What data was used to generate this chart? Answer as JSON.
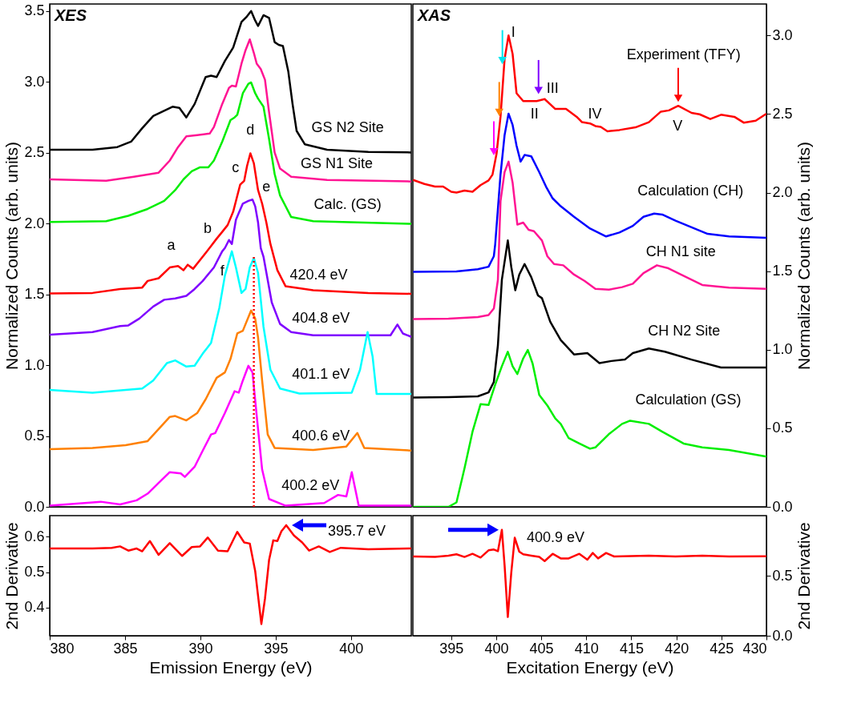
{
  "chart_data": [
    {
      "type": "line",
      "title": "XES",
      "ylabel": "Normalized Counts (arb. units)",
      "xlim": [
        380,
        404
      ],
      "ylim": [
        0,
        3.55
      ],
      "xticks": [
        380,
        385,
        390,
        395,
        400
      ],
      "yticks": [
        {
          "value": 0,
          "label": "0.0"
        },
        0.5,
        {
          "value": 1,
          "label": "1.0"
        },
        1.5,
        {
          "value": 2,
          "label": "2.0"
        },
        2.5,
        {
          "value": 3,
          "label": "3.0"
        },
        3.5
      ],
      "tick_labels": "y",
      "grid": false,
      "line_style": "solid",
      "series": [
        {
          "color": "#000000",
          "x": [
            380.0,
            382.84,
            384.49,
            385.4,
            386.14,
            386.87,
            388.15,
            388.61,
            389.07,
            389.62,
            390.35,
            390.71,
            391.08,
            391.63,
            392.18,
            392.73,
            393.09,
            393.37,
            393.64,
            393.83,
            394.19,
            394.56,
            394.93,
            395.2,
            395.48,
            395.84,
            396.12,
            396.39,
            396.94,
            398.41,
            401.15,
            404.0
          ],
          "values": [
            2.521,
            2.521,
            2.54,
            2.578,
            2.673,
            2.759,
            2.825,
            2.816,
            2.749,
            2.844,
            3.034,
            3.044,
            3.034,
            3.148,
            3.243,
            3.424,
            3.462,
            3.5,
            3.433,
            3.395,
            3.471,
            3.452,
            3.281,
            3.262,
            3.253,
            3.072,
            2.844,
            2.654,
            2.559,
            2.521,
            2.506,
            2.502
          ]
        },
        {
          "color": "#ff1493",
          "x": [
            380.0,
            383.75,
            385.59,
            387.23,
            387.97,
            388.52,
            389.07,
            389.8,
            390.62,
            390.9,
            391.45,
            391.9,
            392.09,
            392.36,
            392.73,
            393.0,
            393.28,
            393.55,
            393.74,
            394.01,
            394.29,
            394.56,
            394.93,
            395.29,
            396.03,
            398.41,
            404.0
          ],
          "values": [
            2.312,
            2.302,
            2.331,
            2.359,
            2.445,
            2.54,
            2.616,
            2.625,
            2.635,
            2.682,
            2.844,
            2.958,
            2.973,
            2.968,
            3.129,
            3.224,
            3.3,
            3.205,
            3.129,
            3.091,
            3.015,
            2.787,
            2.502,
            2.388,
            2.331,
            2.308,
            2.297
          ]
        },
        {
          "color": "#00ee00",
          "x": [
            380.0,
            383.75,
            385.22,
            386.5,
            387.6,
            388.33,
            388.88,
            389.43,
            389.98,
            390.53,
            390.9,
            391.45,
            392.0,
            392.27,
            392.45,
            392.82,
            393.19,
            393.37,
            393.64,
            393.83,
            394.19,
            394.56,
            394.93,
            395.29,
            396.03,
            397.49,
            404.0
          ],
          "values": [
            2.011,
            2.017,
            2.055,
            2.103,
            2.16,
            2.236,
            2.312,
            2.369,
            2.397,
            2.397,
            2.445,
            2.578,
            2.73,
            2.749,
            2.768,
            2.92,
            2.987,
            2.996,
            2.92,
            2.882,
            2.825,
            2.597,
            2.35,
            2.198,
            2.046,
            2.017,
            1.998
          ]
        },
        {
          "color": "#ff0000",
          "x": [
            380.0,
            382.84,
            384.67,
            386.14,
            386.5,
            387.23,
            387.97,
            388.52,
            388.88,
            389.16,
            389.52,
            390.16,
            390.71,
            391.08,
            391.45,
            391.81,
            392.18,
            392.64,
            392.91,
            393.1,
            393.32,
            393.55,
            393.83,
            394.1,
            394.38,
            394.65,
            395.11,
            395.66,
            397.49,
            401.15,
            404.0
          ],
          "values": [
            1.506,
            1.51,
            1.538,
            1.548,
            1.595,
            1.614,
            1.69,
            1.7,
            1.671,
            1.709,
            1.681,
            1.766,
            1.842,
            1.893,
            1.941,
            1.989,
            2.084,
            2.274,
            2.302,
            2.407,
            2.496,
            2.426,
            2.236,
            2.141,
            2.008,
            1.856,
            1.671,
            1.557,
            1.529,
            1.51,
            1.504
          ]
        },
        {
          "color": "#7f00ff",
          "x": [
            380.0,
            382.84,
            384.67,
            385.22,
            385.95,
            386.87,
            387.6,
            388.33,
            389.07,
            389.62,
            390.16,
            390.9,
            391.45,
            391.63,
            391.9,
            392.09,
            392.36,
            392.55,
            392.82,
            393.19,
            393.46,
            393.64,
            393.83,
            394.01,
            394.19,
            394.74,
            395.29,
            396.03,
            397.49,
            402.62,
            403.08,
            403.44,
            404.0
          ],
          "values": [
            1.215,
            1.234,
            1.276,
            1.281,
            1.329,
            1.414,
            1.462,
            1.471,
            1.49,
            1.538,
            1.595,
            1.69,
            1.804,
            1.827,
            1.884,
            1.856,
            2.027,
            2.074,
            2.141,
            2.16,
            2.169,
            2.122,
            2.008,
            1.827,
            1.766,
            1.443,
            1.291,
            1.234,
            1.211,
            1.211,
            1.287,
            1.224,
            1.2
          ]
        },
        {
          "color": "#00ffff",
          "x": [
            380.0,
            382.84,
            386.14,
            386.87,
            387.78,
            388.33,
            389.07,
            389.62,
            390.16,
            390.71,
            391.26,
            391.63,
            392.09,
            392.36,
            392.73,
            393.0,
            393.28,
            393.55,
            393.83,
            394.19,
            394.65,
            395.29,
            396.58,
            400.05,
            400.6,
            401.1,
            401.43,
            401.7,
            404.0
          ],
          "values": [
            0.825,
            0.806,
            0.835,
            0.892,
            1.015,
            1.034,
            0.99,
            0.996,
            1.082,
            1.158,
            1.405,
            1.633,
            1.804,
            1.69,
            1.51,
            1.538,
            1.69,
            1.757,
            1.652,
            1.272,
            0.968,
            0.835,
            0.8,
            0.806,
            0.968,
            1.234,
            1.063,
            0.797,
            0.797
          ]
        },
        {
          "color": "#ff8000",
          "x": [
            380.0,
            382.84,
            385.04,
            386.5,
            387.23,
            387.97,
            388.33,
            389.07,
            389.8,
            390.35,
            391.08,
            391.63,
            392.0,
            392.45,
            392.82,
            393.37,
            393.64,
            393.83,
            394.1,
            394.47,
            394.93,
            397.49,
            399.69,
            400.42,
            400.88,
            404.0
          ],
          "values": [
            0.407,
            0.416,
            0.435,
            0.464,
            0.549,
            0.635,
            0.641,
            0.61,
            0.663,
            0.759,
            0.911,
            0.949,
            1.044,
            1.224,
            1.243,
            1.386,
            1.329,
            1.196,
            0.892,
            0.511,
            0.416,
            0.401,
            0.426,
            0.521,
            0.416,
            0.397
          ]
        },
        {
          "color": "#ff00ff",
          "x": [
            380.0,
            383.39,
            384.67,
            385.77,
            386.5,
            387.23,
            387.97,
            388.7,
            388.97,
            389.62,
            390.16,
            390.71,
            390.99,
            391.63,
            392.27,
            392.55,
            392.82,
            393.19,
            393.46,
            393.74,
            394.1,
            394.56,
            395.66,
            398.22,
            399.14,
            399.69,
            400.05,
            400.51,
            404.0
          ],
          "values": [
            0.008,
            0.036,
            0.017,
            0.046,
            0.093,
            0.169,
            0.245,
            0.236,
            0.211,
            0.283,
            0.397,
            0.511,
            0.521,
            0.663,
            0.816,
            0.806,
            0.892,
            0.996,
            0.949,
            0.644,
            0.264,
            0.055,
            0.008,
            0.027,
            0.084,
            0.074,
            0.245,
            0.008,
            0.008
          ]
        }
      ],
      "ref_lines": [
        {
          "axis": "x",
          "value": 393.55,
          "color": "#ff0000",
          "line_style": "dotted"
        }
      ],
      "annotations": [
        "GS N2 Site",
        "GS N1 Site",
        "Calc. (GS)",
        "d",
        "c",
        "e",
        "b",
        "a",
        "f",
        "420.4 eV",
        "404.8 eV",
        "401.1 eV",
        "400.6 eV",
        "400.2 eV"
      ]
    },
    {
      "type": "line",
      "title": "XAS",
      "ylabel": "Normalized Counts (arb. units)",
      "xlim": [
        390.75,
        430
      ],
      "ylim": [
        0,
        3.2
      ],
      "xticks": [
        395,
        400,
        405,
        410,
        415,
        420,
        425,
        430
      ],
      "yticks": [
        {
          "value": 0,
          "label": "0.0"
        },
        0.5,
        {
          "value": 1,
          "label": "1.0"
        },
        1.5,
        {
          "value": 2,
          "label": "2.0"
        },
        2.5,
        {
          "value": 3,
          "label": "3.0"
        }
      ],
      "tick_labels": "y",
      "grid": false,
      "line_style": "solid",
      "series": [
        {
          "color": "#ff0000",
          "x": [
            390.78,
            392.03,
            393.21,
            394.11,
            395.0,
            395.59,
            396.48,
            397.37,
            398.26,
            399.15,
            399.59,
            400.04,
            400.48,
            400.93,
            401.37,
            401.82,
            402.26,
            403.0,
            404.49,
            405.38,
            406.56,
            407.75,
            408.94,
            409.53,
            410.42,
            411.01,
            411.61,
            412.35,
            413.68,
            415.46,
            416.95,
            418.28,
            419.17,
            420.21,
            421.69,
            422.58,
            423.77,
            424.96,
            426.44,
            427.48,
            428.81,
            430.0
          ],
          "values": [
            2.08,
            2.055,
            2.038,
            2.038,
            2.005,
            2.0,
            2.013,
            2.005,
            2.047,
            2.077,
            2.114,
            2.247,
            2.482,
            2.849,
            3.0,
            2.883,
            2.632,
            2.582,
            2.582,
            2.595,
            2.532,
            2.532,
            2.482,
            2.448,
            2.44,
            2.423,
            2.418,
            2.39,
            2.398,
            2.415,
            2.448,
            2.515,
            2.523,
            2.552,
            2.507,
            2.498,
            2.468,
            2.495,
            2.482,
            2.445,
            2.457,
            2.502
          ]
        },
        {
          "color": "#0000ff",
          "x": [
            390.78,
            395.59,
            397.96,
            399.15,
            399.74,
            399.89,
            400.48,
            400.93,
            401.37,
            401.82,
            402.26,
            402.71,
            403.15,
            403.89,
            404.78,
            405.53,
            406.27,
            407.16,
            408.64,
            410.42,
            412.2,
            413.68,
            415.17,
            416.35,
            417.54,
            418.43,
            419.91,
            421.69,
            423.47,
            425.85,
            430.0
          ],
          "values": [
            1.495,
            1.498,
            1.512,
            1.528,
            1.595,
            1.671,
            2.114,
            2.365,
            2.502,
            2.431,
            2.298,
            2.197,
            2.239,
            2.231,
            2.13,
            2.038,
            1.963,
            1.913,
            1.846,
            1.771,
            1.721,
            1.746,
            1.788,
            1.846,
            1.866,
            1.86,
            1.821,
            1.779,
            1.737,
            1.721,
            1.712
          ]
        },
        {
          "color": "#ff1493",
          "x": [
            390.78,
            394.7,
            397.96,
            399.15,
            399.74,
            400.19,
            400.48,
            400.93,
            401.37,
            401.82,
            402.35,
            403.0,
            403.6,
            404.19,
            405.08,
            405.68,
            406.42,
            407.45,
            408.64,
            409.83,
            411.01,
            412.5,
            413.98,
            415.17,
            416.35,
            417.84,
            419.02,
            420.51,
            422.88,
            425.85,
            430.0
          ],
          "values": [
            1.195,
            1.198,
            1.208,
            1.22,
            1.262,
            1.445,
            1.946,
            2.13,
            2.197,
            2.064,
            1.796,
            1.809,
            1.763,
            1.754,
            1.695,
            1.595,
            1.545,
            1.537,
            1.478,
            1.437,
            1.387,
            1.382,
            1.398,
            1.42,
            1.487,
            1.537,
            1.52,
            1.478,
            1.412,
            1.395,
            1.387
          ]
        },
        {
          "color": "#000000",
          "x": [
            390.78,
            394.7,
            397.96,
            399.15,
            399.74,
            400.19,
            400.63,
            401.29,
            401.67,
            402.12,
            402.56,
            403.15,
            403.89,
            404.64,
            405.08,
            406.0,
            407.16,
            408.64,
            410.12,
            411.46,
            412.79,
            414.28,
            415.17,
            416.95,
            418.73,
            421.69,
            424.96,
            430.0
          ],
          "values": [
            0.695,
            0.698,
            0.703,
            0.728,
            0.795,
            1.028,
            1.445,
            1.695,
            1.528,
            1.378,
            1.478,
            1.545,
            1.462,
            1.345,
            1.328,
            1.178,
            1.062,
            0.97,
            0.978,
            0.915,
            0.928,
            0.937,
            0.978,
            1.008,
            0.987,
            0.937,
            0.887,
            0.887
          ]
        },
        {
          "color": "#00ee00",
          "x": [
            390.78,
            394.7,
            395.59,
            396.48,
            397.37,
            398.26,
            399.15,
            399.89,
            400.63,
            401.29,
            401.82,
            402.35,
            403.0,
            403.51,
            404.04,
            404.78,
            405.68,
            406.56,
            407.16,
            408.05,
            409.23,
            410.42,
            411.01,
            412.5,
            413.98,
            414.87,
            416.95,
            418.43,
            420.8,
            422.88,
            425.85,
            430.0
          ],
          "values": [
            0.0,
            0.0,
            0.028,
            0.245,
            0.478,
            0.653,
            0.648,
            0.778,
            0.895,
            0.987,
            0.895,
            0.845,
            0.945,
            0.998,
            0.912,
            0.712,
            0.645,
            0.562,
            0.528,
            0.437,
            0.403,
            0.37,
            0.378,
            0.462,
            0.528,
            0.548,
            0.528,
            0.478,
            0.403,
            0.378,
            0.362,
            0.32
          ]
        },
        {
          "type": "scatter",
          "marker": "triangle",
          "color": "#00e5ee",
          "x": [
            400.69
          ],
          "values": [
            2.84
          ]
        },
        {
          "type": "scatter",
          "marker": "triangle",
          "color": "#ff8000",
          "x": [
            400.34
          ],
          "values": [
            2.51
          ]
        },
        {
          "type": "scatter",
          "marker": "triangle",
          "color": "#ff00ff",
          "x": [
            399.74
          ],
          "values": [
            2.26
          ]
        },
        {
          "type": "scatter",
          "marker": "triangle",
          "color": "#7f00ff",
          "x": [
            404.7
          ],
          "values": [
            2.65
          ]
        },
        {
          "type": "scatter",
          "marker": "triangle",
          "color": "#ff0000",
          "x": [
            420.21
          ],
          "values": [
            2.6
          ]
        }
      ],
      "annotations": [
        "I",
        "II",
        "III",
        "IV",
        "V",
        "Experiment (TFY)",
        "Calculation (CH)",
        "CH N1 site",
        "CH N2 Site",
        "Calculation (GS)"
      ]
    },
    {
      "type": "line",
      "xlabel": "Emission Energy (eV)",
      "ylabel": "2nd Derivative",
      "xlim": [
        380,
        404
      ],
      "ylim": [
        0.32,
        0.66
      ],
      "xticks": [
        380,
        385,
        390,
        395,
        400
      ],
      "yticks": [
        0.4,
        0.5,
        0.6
      ],
      "grid": false,
      "line_style": "solid",
      "series": [
        {
          "color": "#ff0000",
          "x": [
            380.0,
            382.84,
            384.12,
            384.67,
            385.22,
            385.77,
            386.14,
            386.65,
            387.23,
            387.97,
            388.79,
            389.43,
            389.98,
            390.49,
            391.17,
            391.81,
            392.45,
            392.91,
            393.28,
            393.64,
            393.83,
            394.05,
            394.29,
            394.56,
            394.84,
            395.11,
            395.38,
            395.7,
            396.21,
            396.76,
            397.22,
            397.86,
            398.59,
            399.32,
            401.15,
            404.0
          ],
          "values": [
            0.567,
            0.567,
            0.569,
            0.573,
            0.561,
            0.567,
            0.559,
            0.588,
            0.549,
            0.582,
            0.546,
            0.571,
            0.573,
            0.598,
            0.561,
            0.559,
            0.614,
            0.584,
            0.581,
            0.503,
            0.433,
            0.353,
            0.425,
            0.534,
            0.59,
            0.588,
            0.616,
            0.633,
            0.604,
            0.584,
            0.561,
            0.573,
            0.557,
            0.569,
            0.565,
            0.567
          ]
        }
      ],
      "annotations": [
        {
          "text": "395.7 eV",
          "x": 395.7,
          "y": 0.633
        }
      ]
    },
    {
      "type": "line",
      "xlabel": "Excitation Energy (eV)",
      "ylabel": "2nd Derivative",
      "xlim": [
        390.75,
        430
      ],
      "ylim": [
        0,
        1
      ],
      "xticks": [
        395,
        400,
        405,
        410,
        415,
        420,
        425,
        430
      ],
      "yticks": [
        {
          "value": 0,
          "label": "0.0"
        },
        0.5
      ],
      "grid": false,
      "line_style": "solid",
      "series": [
        {
          "color": "#ff0000",
          "x": [
            390.78,
            393.22,
            394.7,
            395.59,
            396.48,
            397.37,
            398.26,
            399.15,
            399.74,
            400.19,
            400.63,
            400.93,
            401.29,
            401.67,
            402.06,
            402.56,
            403.0,
            403.89,
            404.78,
            405.38,
            406.27,
            407.16,
            408.05,
            409.23,
            410.12,
            410.72,
            411.31,
            412.2,
            413.09,
            416.95,
            419.91,
            422.88,
            425.85,
            430.0
          ],
          "values": [
            0.66,
            0.656,
            0.667,
            0.678,
            0.656,
            0.682,
            0.651,
            0.711,
            0.718,
            0.704,
            0.882,
            0.589,
            0.156,
            0.522,
            0.816,
            0.7,
            0.678,
            0.667,
            0.656,
            0.622,
            0.682,
            0.644,
            0.644,
            0.682,
            0.633,
            0.689,
            0.644,
            0.689,
            0.66,
            0.667,
            0.66,
            0.667,
            0.66,
            0.662
          ]
        }
      ],
      "annotations": [
        {
          "text": "400.9 eV",
          "x": 400.9,
          "y": 0.882
        }
      ]
    }
  ]
}
